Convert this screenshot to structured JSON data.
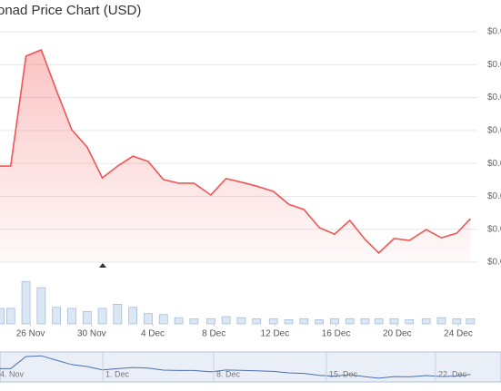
{
  "chart_data": {
    "type": "line",
    "title": "onad Price Chart (USD)",
    "x": [
      0,
      0.7,
      1.7,
      2.7,
      3.7,
      4.7,
      5.7,
      6.7,
      7.7,
      8.7,
      9.7,
      10.7,
      11.7,
      12.7,
      13.8,
      14.8,
      15.8,
      16.8,
      17.9,
      18.9,
      19.9,
      20.9,
      21.9,
      22.9,
      23.9,
      24.8,
      25.8,
      26.8,
      27.9,
      28.9,
      29.9,
      30.8
    ],
    "series": [
      {
        "color": "#f25555",
        "values": [
          0.0292,
          0.0292,
          0.0626,
          0.0645,
          0.0521,
          0.0402,
          0.035,
          0.0256,
          0.0292,
          0.0322,
          0.0306,
          0.0251,
          0.024,
          0.024,
          0.0204,
          0.0254,
          0.0243,
          0.0231,
          0.0215,
          0.0176,
          0.016,
          0.0105,
          0.0085,
          0.0127,
          0.0069,
          0.0028,
          0.0072,
          0.0066,
          0.0099,
          0.0074,
          0.0088,
          0.0132
        ]
      }
    ],
    "volume": {
      "color": "#dbe7f5",
      "values": [
        15,
        15,
        41,
        35,
        16,
        15,
        12,
        15,
        19,
        16,
        10,
        9,
        6,
        5,
        5,
        7,
        6,
        5,
        5,
        4,
        5,
        4,
        5,
        5,
        5,
        5,
        5,
        4,
        5,
        6,
        5,
        5
      ],
      "ylim": [
        0,
        50
      ]
    },
    "xlim": [
      0,
      31.25
    ],
    "xticks": [
      {
        "value": 2,
        "label": "26 Nov"
      },
      {
        "value": 6,
        "label": "30 Nov"
      },
      {
        "value": 10,
        "label": "4 Dec"
      },
      {
        "value": 14,
        "label": "8 Dec"
      },
      {
        "value": 18,
        "label": "12 Dec"
      },
      {
        "value": 22,
        "label": "16 Dec"
      },
      {
        "value": 26,
        "label": "20 Dec"
      },
      {
        "value": 30,
        "label": "24 Dec"
      }
    ],
    "ylim": [
      0,
      0.07
    ],
    "yticks": [
      {
        "value": 0,
        "label": "$0.0"
      },
      {
        "value": 0.01,
        "label": "$0.0"
      },
      {
        "value": 0.02,
        "label": "$0.0"
      },
      {
        "value": 0.03,
        "label": "$0.0"
      },
      {
        "value": 0.04,
        "label": "$0.0"
      },
      {
        "value": 0.05,
        "label": "$0.0"
      },
      {
        "value": 0.06,
        "label": "$0.0"
      },
      {
        "value": 0.07,
        "label": "$0.0"
      }
    ],
    "grid": true,
    "navigator_labels": [
      "4. Nov",
      "1. Dec",
      "8. Dec",
      "15. Dec",
      "22. Dec"
    ]
  }
}
